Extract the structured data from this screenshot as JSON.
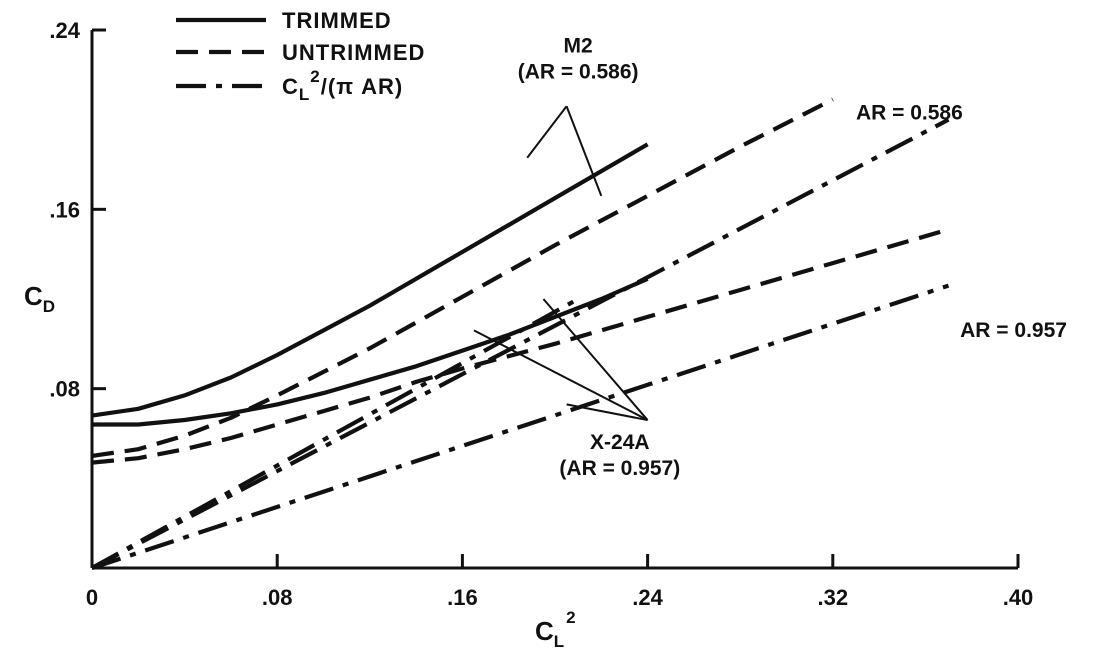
{
  "chart_data": {
    "type": "line",
    "x_axis": {
      "title_main": "C",
      "title_sub": "L",
      "title_sup": "2",
      "range": [
        0,
        0.4
      ],
      "ticks": [
        0,
        0.08,
        0.16,
        0.24,
        0.32,
        0.4
      ],
      "tick_labels": [
        "0",
        ".08",
        ".16",
        ".24",
        ".32",
        ".40"
      ]
    },
    "y_axis": {
      "title_main": "C",
      "title_sub": "D",
      "range": [
        0,
        0.24
      ],
      "ticks": [
        0,
        0.08,
        0.16,
        0.24
      ],
      "tick_labels": [
        "",
        ".08",
        ".16",
        ".24"
      ]
    },
    "grid": false,
    "legend": {
      "placement": "top-left",
      "entries": [
        {
          "style": "solid",
          "label": "TRIMMED"
        },
        {
          "style": "dashed",
          "label": "UNTRIMMED"
        },
        {
          "style": "dashdot",
          "label_main": "C",
          "label_sub": "L",
          "label_sup": "2",
          "label_rest": "/(π AR)"
        }
      ]
    },
    "series": [
      {
        "style": "solid",
        "x": [
          0,
          0.02,
          0.04,
          0.06,
          0.08,
          0.1,
          0.12,
          0.14,
          0.16,
          0.18,
          0.2,
          0.22,
          0.24
        ],
        "y": [
          0.068,
          0.071,
          0.077,
          0.085,
          0.095,
          0.106,
          0.117,
          0.129,
          0.141,
          0.153,
          0.165,
          0.177,
          0.189
        ]
      },
      {
        "style": "dashed",
        "x": [
          0,
          0.02,
          0.04,
          0.06,
          0.08,
          0.12,
          0.16,
          0.2,
          0.24,
          0.28,
          0.32
        ],
        "y": [
          0.05,
          0.053,
          0.059,
          0.067,
          0.077,
          0.098,
          0.121,
          0.144,
          0.166,
          0.188,
          0.209
        ]
      },
      {
        "style": "dashdot",
        "x": [
          0,
          0.37
        ],
        "y": [
          0,
          0.2
        ]
      },
      {
        "style": "solid",
        "x": [
          0,
          0.02,
          0.04,
          0.06,
          0.08,
          0.1,
          0.12,
          0.14,
          0.16,
          0.18,
          0.2,
          0.22,
          0.24
        ],
        "y": [
          0.064,
          0.064,
          0.066,
          0.069,
          0.073,
          0.078,
          0.084,
          0.09,
          0.097,
          0.104,
          0.112,
          0.12,
          0.129
        ]
      },
      {
        "style": "dashed",
        "x": [
          0,
          0.02,
          0.04,
          0.06,
          0.08,
          0.1,
          0.12,
          0.14,
          0.16,
          0.2,
          0.24,
          0.28,
          0.32,
          0.37
        ],
        "y": [
          0.047,
          0.049,
          0.053,
          0.058,
          0.064,
          0.07,
          0.076,
          0.083,
          0.089,
          0.1,
          0.112,
          0.124,
          0.136,
          0.151
        ]
      },
      {
        "style": "dashdot",
        "x": [
          0,
          0.21
        ],
        "y": [
          0,
          0.12
        ]
      },
      {
        "style": "dashdot",
        "x": [
          0,
          0.37
        ],
        "y": [
          0,
          0.126
        ]
      }
    ],
    "annotations": [
      {
        "lines": [
          "M2",
          "(AR = 0.586)"
        ],
        "x": 0.21,
        "y": 0.23,
        "align": "middle",
        "leaders": [
          [
            0.188,
            0.183
          ],
          [
            0.22,
            0.166
          ]
        ],
        "leader_from": [
          0.205,
          0.206
        ]
      },
      {
        "lines": [
          "AR = 0.586"
        ],
        "x": 0.33,
        "y": 0.2,
        "align": "start"
      },
      {
        "lines": [
          "AR = 0.957"
        ],
        "x": 0.375,
        "y": 0.103,
        "align": "start"
      },
      {
        "lines": [
          "X-24A",
          "(AR = 0.957)"
        ],
        "x": 0.228,
        "y": 0.053,
        "align": "middle",
        "leaders": [
          [
            0.195,
            0.12
          ],
          [
            0.165,
            0.106
          ],
          [
            0.205,
            0.073
          ]
        ],
        "leader_from": [
          0.24,
          0.066
        ]
      }
    ]
  }
}
